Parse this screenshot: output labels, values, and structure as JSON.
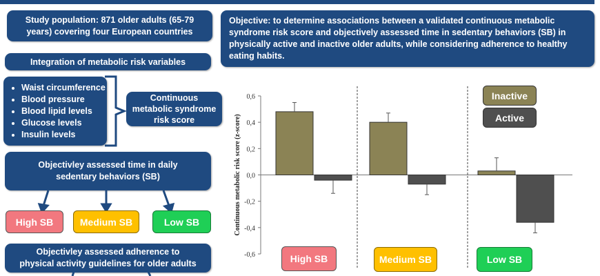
{
  "left": {
    "study_population": "Study population: 871 older adults (65-79 years) covering four European countries",
    "integration": "Integration of metabolic risk variables",
    "variables": [
      "Waist circumference",
      "Blood pressure",
      "Blood lipid levels",
      "Glucose levels",
      "Insulin levels"
    ],
    "score": "Continuous metabolic syndrome risk score",
    "sb_assessment": "Objectivley assessed time in daily sedentary behaviors (SB)",
    "categories": [
      "High SB",
      "Medium SB",
      "Low SB"
    ],
    "adherence": "Objectivley assessed adherence to physical activity guidelines for older adults"
  },
  "objective": "Objective: to determine associations between a validated continuous metabolic syndrome risk score and objectively assessed time in sedentary behaviors (SB) in physically active and inactive older adults, while considering adherence to healthy eating habits.",
  "colors": {
    "navy": "#1f4a80",
    "inactive": "#8b8355",
    "active": "#4f4f4f",
    "high": "#f2787f",
    "medium": "#ffc000",
    "low": "#1fcf56"
  },
  "chart_data": {
    "type": "bar",
    "ylabel": "Continuous metabolic risk score (z-score)",
    "ylim": [
      -0.6,
      0.6
    ],
    "yticks": [
      "0,6",
      "0,4",
      "0,2",
      "0,0",
      "-0,2",
      "-0,4",
      "-0,6"
    ],
    "ytick_values": [
      0.6,
      0.4,
      0.2,
      0,
      -0.2,
      -0.4,
      -0.6
    ],
    "categories": [
      "High SB",
      "Medium SB",
      "Low SB"
    ],
    "series": [
      {
        "name": "Inactive",
        "values": [
          0.48,
          0.4,
          0.03
        ],
        "error": [
          0.07,
          0.07,
          0.1
        ]
      },
      {
        "name": "Active",
        "values": [
          -0.04,
          -0.07,
          -0.36
        ],
        "error": [
          0.1,
          0.08,
          0.08
        ]
      }
    ],
    "legend_position": "top-right"
  }
}
